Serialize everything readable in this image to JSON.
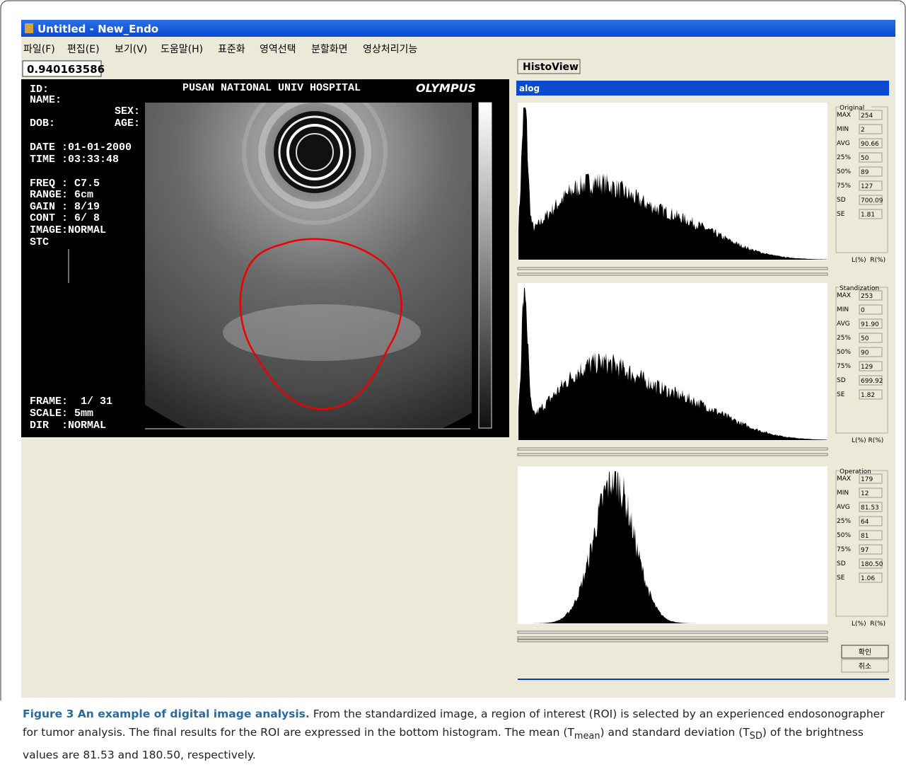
{
  "window": {
    "title": "Untitled - New_Endo",
    "menu": [
      "파일(F)",
      "편집(E)",
      "보기(V)",
      "도움말(H)",
      "표준화",
      "영역선택",
      "분할화면",
      "영상처리기능"
    ],
    "value_box": "0.940163586"
  },
  "image": {
    "id": "ID:",
    "name": "NAME:",
    "sex": "SEX:",
    "dob": "DOB:",
    "age": "AGE:",
    "date": "DATE :01-01-2000",
    "time": "TIME :03:33:48",
    "freq": "FREQ : C7.5",
    "range": "RANGE: 6cm",
    "gain": "GAIN : 8/19",
    "cont": "CONT : 6/ 8",
    "image_mode": "IMAGE:NORMAL",
    "stc": "STC",
    "frame": "FRAME:  1/ 31",
    "scale": "SCALE: 5mm",
    "dir": "DIR  :NORMAL",
    "hospital": "PUSAN NATIONAL UNIV HOSPITAL",
    "brand": "OLYMPUS"
  },
  "histoview": {
    "button": "HistoView",
    "bar": "alog",
    "panels": [
      {
        "title": "Original",
        "stats": [
          [
            "MAX",
            "254"
          ],
          [
            "MIN",
            "2"
          ],
          [
            "AVG",
            "90.66"
          ],
          [
            "25%",
            "50"
          ],
          [
            "50%",
            "89"
          ],
          [
            "75%",
            "127"
          ],
          [
            "SD",
            "700.09"
          ],
          [
            "SE",
            "1.81"
          ]
        ],
        "footer": "L(%)  R(%)"
      },
      {
        "title": "Standization",
        "stats": [
          [
            "MAX",
            "253"
          ],
          [
            "MIN",
            "0"
          ],
          [
            "AVG",
            "91.90"
          ],
          [
            "25%",
            "50"
          ],
          [
            "50%",
            "90"
          ],
          [
            "75%",
            "129"
          ],
          [
            "SD",
            "699.92"
          ],
          [
            "SE",
            "1.82"
          ]
        ],
        "footer": "L(%) R(%)"
      },
      {
        "title": "Operation",
        "stats": [
          [
            "MAX",
            "179"
          ],
          [
            "MIN",
            "12"
          ],
          [
            "AVG",
            "81.53"
          ],
          [
            "25%",
            "64"
          ],
          [
            "50%",
            "81"
          ],
          [
            "75%",
            "97"
          ],
          [
            "SD",
            "180.50"
          ],
          [
            "SE",
            "1.06"
          ]
        ],
        "footer": "L(%)  R(%)"
      }
    ],
    "ok": "확인",
    "cancel": "취소"
  },
  "caption": {
    "label": "Figure 3 An example of digital image analysis.",
    "text_1": " From the standardized image, a region of interest (ROI) is selected by an experienced endosonographer for tumor analysis. The final results for the ROI are expressed in the bottom histogram. The mean (T",
    "sub_1": "mean",
    "text_2": ") and standard deviation (T",
    "sub_2": "SD",
    "text_3": ") of the brightness values are 81.53 and 180.50, respectively."
  }
}
